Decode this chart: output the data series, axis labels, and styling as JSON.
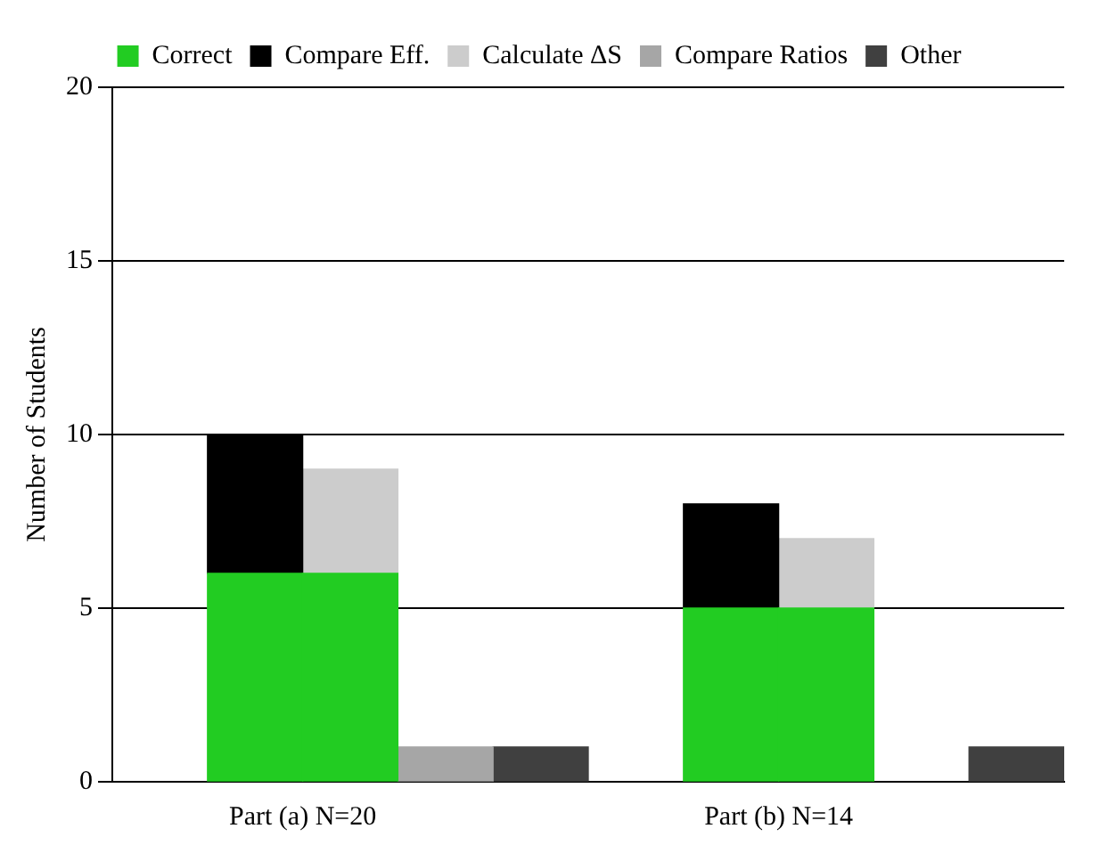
{
  "chart_data": {
    "type": "bar",
    "ylabel": "Number of Students",
    "categories": [
      null,
      null,
      "Part (a) N=20",
      null,
      null,
      null,
      null,
      "Part (b) N=14",
      null,
      null
    ],
    "stacked": true,
    "series": [
      {
        "name": "Correct",
        "color": "#22cc22",
        "values": [
          null,
          6,
          6,
          null,
          null,
          null,
          5,
          5,
          null,
          null
        ]
      },
      {
        "name": "Compare Eff.",
        "color": "#000000",
        "values": [
          null,
          4,
          null,
          null,
          null,
          null,
          3,
          null,
          null,
          null
        ]
      },
      {
        "name": "Calculate ΔS",
        "color": "#cccccc",
        "values": [
          null,
          null,
          3,
          null,
          null,
          null,
          null,
          2,
          null,
          null
        ]
      },
      {
        "name": "Compare Ratios",
        "color": "#a6a6a6",
        "values": [
          null,
          null,
          null,
          1,
          null,
          null,
          null,
          null,
          null,
          null
        ]
      },
      {
        "name": "Other",
        "color": "#404040",
        "values": [
          null,
          null,
          null,
          null,
          1,
          null,
          null,
          null,
          null,
          1
        ]
      }
    ],
    "ylim": [
      0,
      20
    ],
    "yticks": [
      0,
      5,
      10,
      15,
      20
    ],
    "grid": "y",
    "legend": "top"
  }
}
